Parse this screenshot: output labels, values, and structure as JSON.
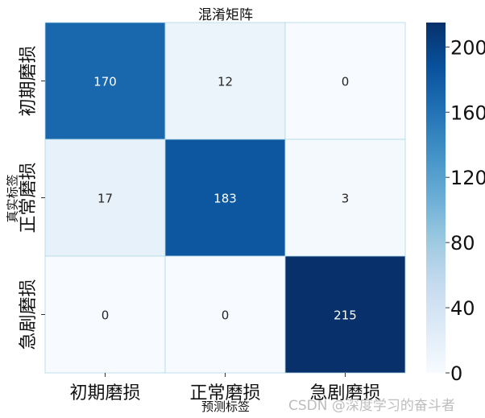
{
  "chart_data": {
    "type": "heatmap",
    "title": "混淆矩阵",
    "xlabel": "预测标签",
    "ylabel": "真实标签",
    "x_categories": [
      "初期磨损",
      "正常磨损",
      "急剧磨损"
    ],
    "y_categories": [
      "初期磨损",
      "正常磨损",
      "急剧磨损"
    ],
    "values": [
      [
        170,
        12,
        0
      ],
      [
        17,
        183,
        3
      ],
      [
        0,
        0,
        215
      ]
    ],
    "colormap": "Blues",
    "vmin": 0,
    "vmax": 215,
    "colorbar_ticks": [
      0,
      40,
      80,
      120,
      160,
      200
    ],
    "colorbar_tick_labels": [
      "0",
      "40",
      "80",
      "120",
      "160",
      "200"
    ],
    "grid_line_color": "#add8e6"
  },
  "watermark": "CSDN @深度学习的奋斗者"
}
